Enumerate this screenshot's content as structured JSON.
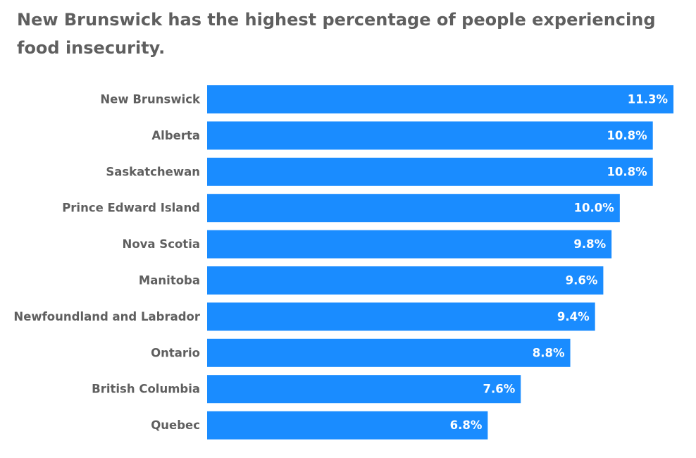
{
  "chart_data": {
    "type": "bar",
    "orientation": "horizontal",
    "title": "New Brunswick has the highest percentage of people experiencing food insecurity.",
    "categories": [
      "New Brunswick",
      "Alberta",
      "Saskatchewan",
      "Prince Edward Island",
      "Nova Scotia",
      "Manitoba",
      "Newfoundland and Labrador",
      "Ontario",
      "British Columbia",
      "Quebec"
    ],
    "values": [
      11.3,
      10.8,
      10.8,
      10.0,
      9.8,
      9.6,
      9.4,
      8.8,
      7.6,
      6.8
    ],
    "value_labels": [
      "11.3%",
      "10.8%",
      "10.8%",
      "10.0%",
      "9.8%",
      "9.6%",
      "9.4%",
      "8.8%",
      "7.6%",
      "6.8%"
    ],
    "xlabel": "",
    "ylabel": "",
    "xlim": [
      0,
      11.3
    ],
    "grid": false,
    "legend": "none",
    "bar_color": "#1a8cff"
  }
}
